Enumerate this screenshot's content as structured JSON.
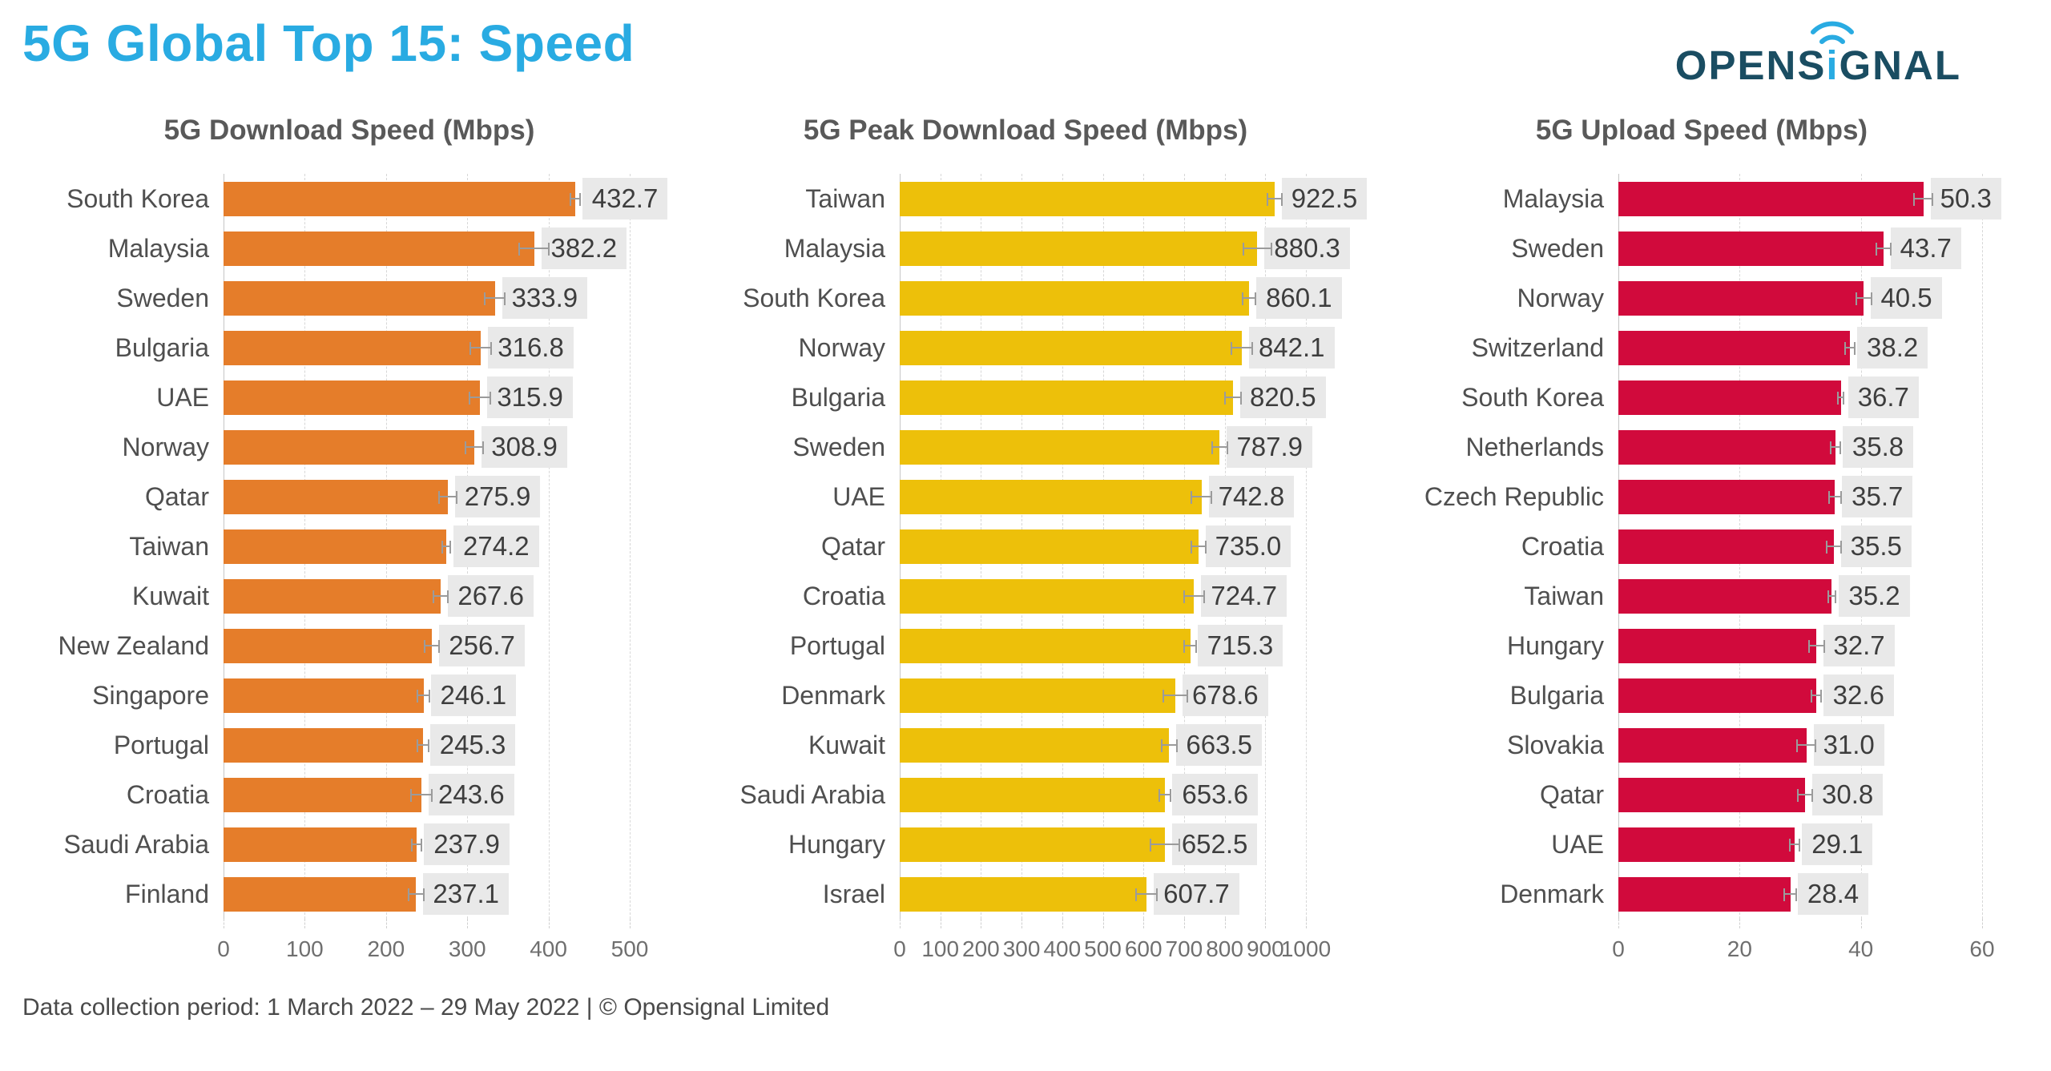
{
  "header": {
    "title": "5G Global Top 15: Speed",
    "logo": {
      "prefix": "OPENS",
      "accent": "i",
      "suffix": "GNAL",
      "brand_color": "#1a4d62",
      "accent_color": "#29abe2"
    }
  },
  "footer": {
    "text": "Data collection period: 1 March 2022 – 29 May 2022 |  © Opensignal Limited"
  },
  "colors": {
    "title_blue": "#29abe2",
    "chart_title_gray": "#595959",
    "download_orange": "#e57d2a",
    "peak_download_yellow": "#edc00a",
    "upload_red": "#d10a3c",
    "value_chip_bg": "#e9e9e9",
    "gridline": "#d7d7d7",
    "error_bar": "#9b9b9b"
  },
  "chart_data": [
    {
      "type": "bar",
      "orientation": "horizontal",
      "title": "5G Download Speed (Mbps)",
      "xlabel": "",
      "ylabel": "",
      "xlim": [
        0,
        500
      ],
      "xticks": [
        0,
        100,
        200,
        300,
        400,
        500
      ],
      "grid": "vertical-dashed",
      "legend": "none",
      "bar_color": "#e57d2a",
      "categories": [
        "South Korea",
        "Malaysia",
        "Sweden",
        "Bulgaria",
        "UAE",
        "Norway",
        "Qatar",
        "Taiwan",
        "Kuwait",
        "New Zealand",
        "Singapore",
        "Portugal",
        "Croatia",
        "Saudi Arabia",
        "Finland"
      ],
      "values": [
        432.7,
        382.2,
        333.9,
        316.8,
        315.9,
        308.9,
        275.9,
        274.2,
        267.6,
        256.7,
        246.1,
        245.3,
        243.6,
        237.9,
        237.1
      ],
      "value_labels": [
        "432.7",
        "382.2",
        "333.9",
        "316.8",
        "315.9",
        "308.9",
        "275.9",
        "274.2",
        "267.6",
        "256.7",
        "246.1",
        "245.3",
        "243.6",
        "237.9",
        "237.1"
      ],
      "errors_estimated": [
        6,
        18,
        12,
        13,
        13,
        11,
        11,
        5,
        9,
        9,
        7,
        7,
        13,
        6,
        9
      ]
    },
    {
      "type": "bar",
      "orientation": "horizontal",
      "title": "5G Peak Download Speed (Mbps)",
      "xlabel": "",
      "ylabel": "",
      "xlim": [
        0,
        1000
      ],
      "xticks": [
        0,
        100,
        200,
        300,
        400,
        500,
        600,
        700,
        800,
        900,
        1000
      ],
      "grid": "vertical-dashed",
      "legend": "none",
      "bar_color": "#edc00a",
      "categories": [
        "Taiwan",
        "Malaysia",
        "South Korea",
        "Norway",
        "Bulgaria",
        "Sweden",
        "UAE",
        "Qatar",
        "Croatia",
        "Portugal",
        "Denmark",
        "Kuwait",
        "Saudi Arabia",
        "Hungary",
        "Israel"
      ],
      "values": [
        922.5,
        880.3,
        860.1,
        842.1,
        820.5,
        787.9,
        742.8,
        735.0,
        724.7,
        715.3,
        678.6,
        663.5,
        653.6,
        652.5,
        607.7
      ],
      "value_labels": [
        "922.5",
        "880.3",
        "860.1",
        "842.1",
        "820.5",
        "787.9",
        "742.8",
        "735.0",
        "724.7",
        "715.3",
        "678.6",
        "663.5",
        "653.6",
        "652.5",
        "607.7"
      ],
      "errors_estimated": [
        18,
        35,
        16,
        25,
        20,
        18,
        25,
        18,
        25,
        15,
        30,
        18,
        14,
        35,
        25
      ]
    },
    {
      "type": "bar",
      "orientation": "horizontal",
      "title": "5G Upload Speed (Mbps)",
      "xlabel": "",
      "ylabel": "",
      "xlim": [
        0,
        60
      ],
      "xticks": [
        0,
        20,
        40,
        60
      ],
      "grid": "vertical-dashed",
      "legend": "none",
      "bar_color": "#d10a3c",
      "categories": [
        "Malaysia",
        "Sweden",
        "Norway",
        "Switzerland",
        "South Korea",
        "Netherlands",
        "Czech Republic",
        "Croatia",
        "Taiwan",
        "Hungary",
        "Bulgaria",
        "Slovakia",
        "Qatar",
        "UAE",
        "Denmark"
      ],
      "values": [
        50.3,
        43.7,
        40.5,
        38.2,
        36.7,
        35.8,
        35.7,
        35.5,
        35.2,
        32.7,
        32.6,
        31.0,
        30.8,
        29.1,
        28.4
      ],
      "value_labels": [
        "50.3",
        "43.7",
        "40.5",
        "38.2",
        "36.7",
        "35.8",
        "35.7",
        "35.5",
        "35.2",
        "32.7",
        "32.6",
        "31.0",
        "30.8",
        "29.1",
        "28.4"
      ],
      "errors_estimated": [
        1.5,
        1.2,
        1.2,
        0.8,
        0.5,
        0.8,
        1.0,
        1.2,
        0.6,
        1.2,
        0.8,
        1.5,
        1.2,
        0.8,
        1.0
      ]
    }
  ]
}
